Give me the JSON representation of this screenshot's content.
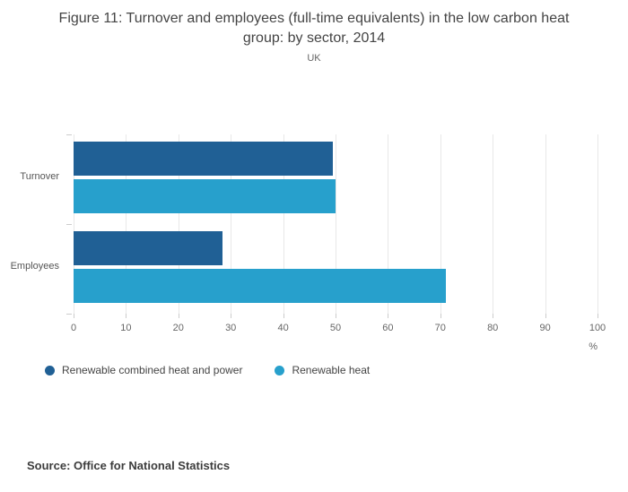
{
  "figure": {
    "title": "Figure 11: Turnover and employees (full-time equivalents) in the low carbon heat group: by sector, 2014",
    "subtitle": "UK",
    "source": "Source: Office for National Statistics"
  },
  "chart_data": {
    "type": "bar",
    "orientation": "horizontal",
    "title": "Figure 11: Turnover and employees (full-time equivalents) in the low carbon heat group: by sector, 2014",
    "subtitle": "UK",
    "categories": [
      "Turnover",
      "Employees"
    ],
    "series": [
      {
        "name": "Renewable combined heat and power",
        "color": "#206095",
        "values": [
          49.5,
          28.5
        ]
      },
      {
        "name": "Renewable heat",
        "color": "#27a0cc",
        "values": [
          50,
          71
        ]
      }
    ],
    "xlabel": "%",
    "xlim": [
      0,
      100
    ],
    "xticks": [
      0,
      10,
      20,
      30,
      40,
      50,
      60,
      70,
      80,
      90,
      100
    ],
    "grid": true,
    "legend_position": "bottom",
    "colors": {
      "grid": "#e8e8e8",
      "tick": "#cccccc",
      "axis_text": "#666666",
      "title_text": "#444444"
    }
  }
}
